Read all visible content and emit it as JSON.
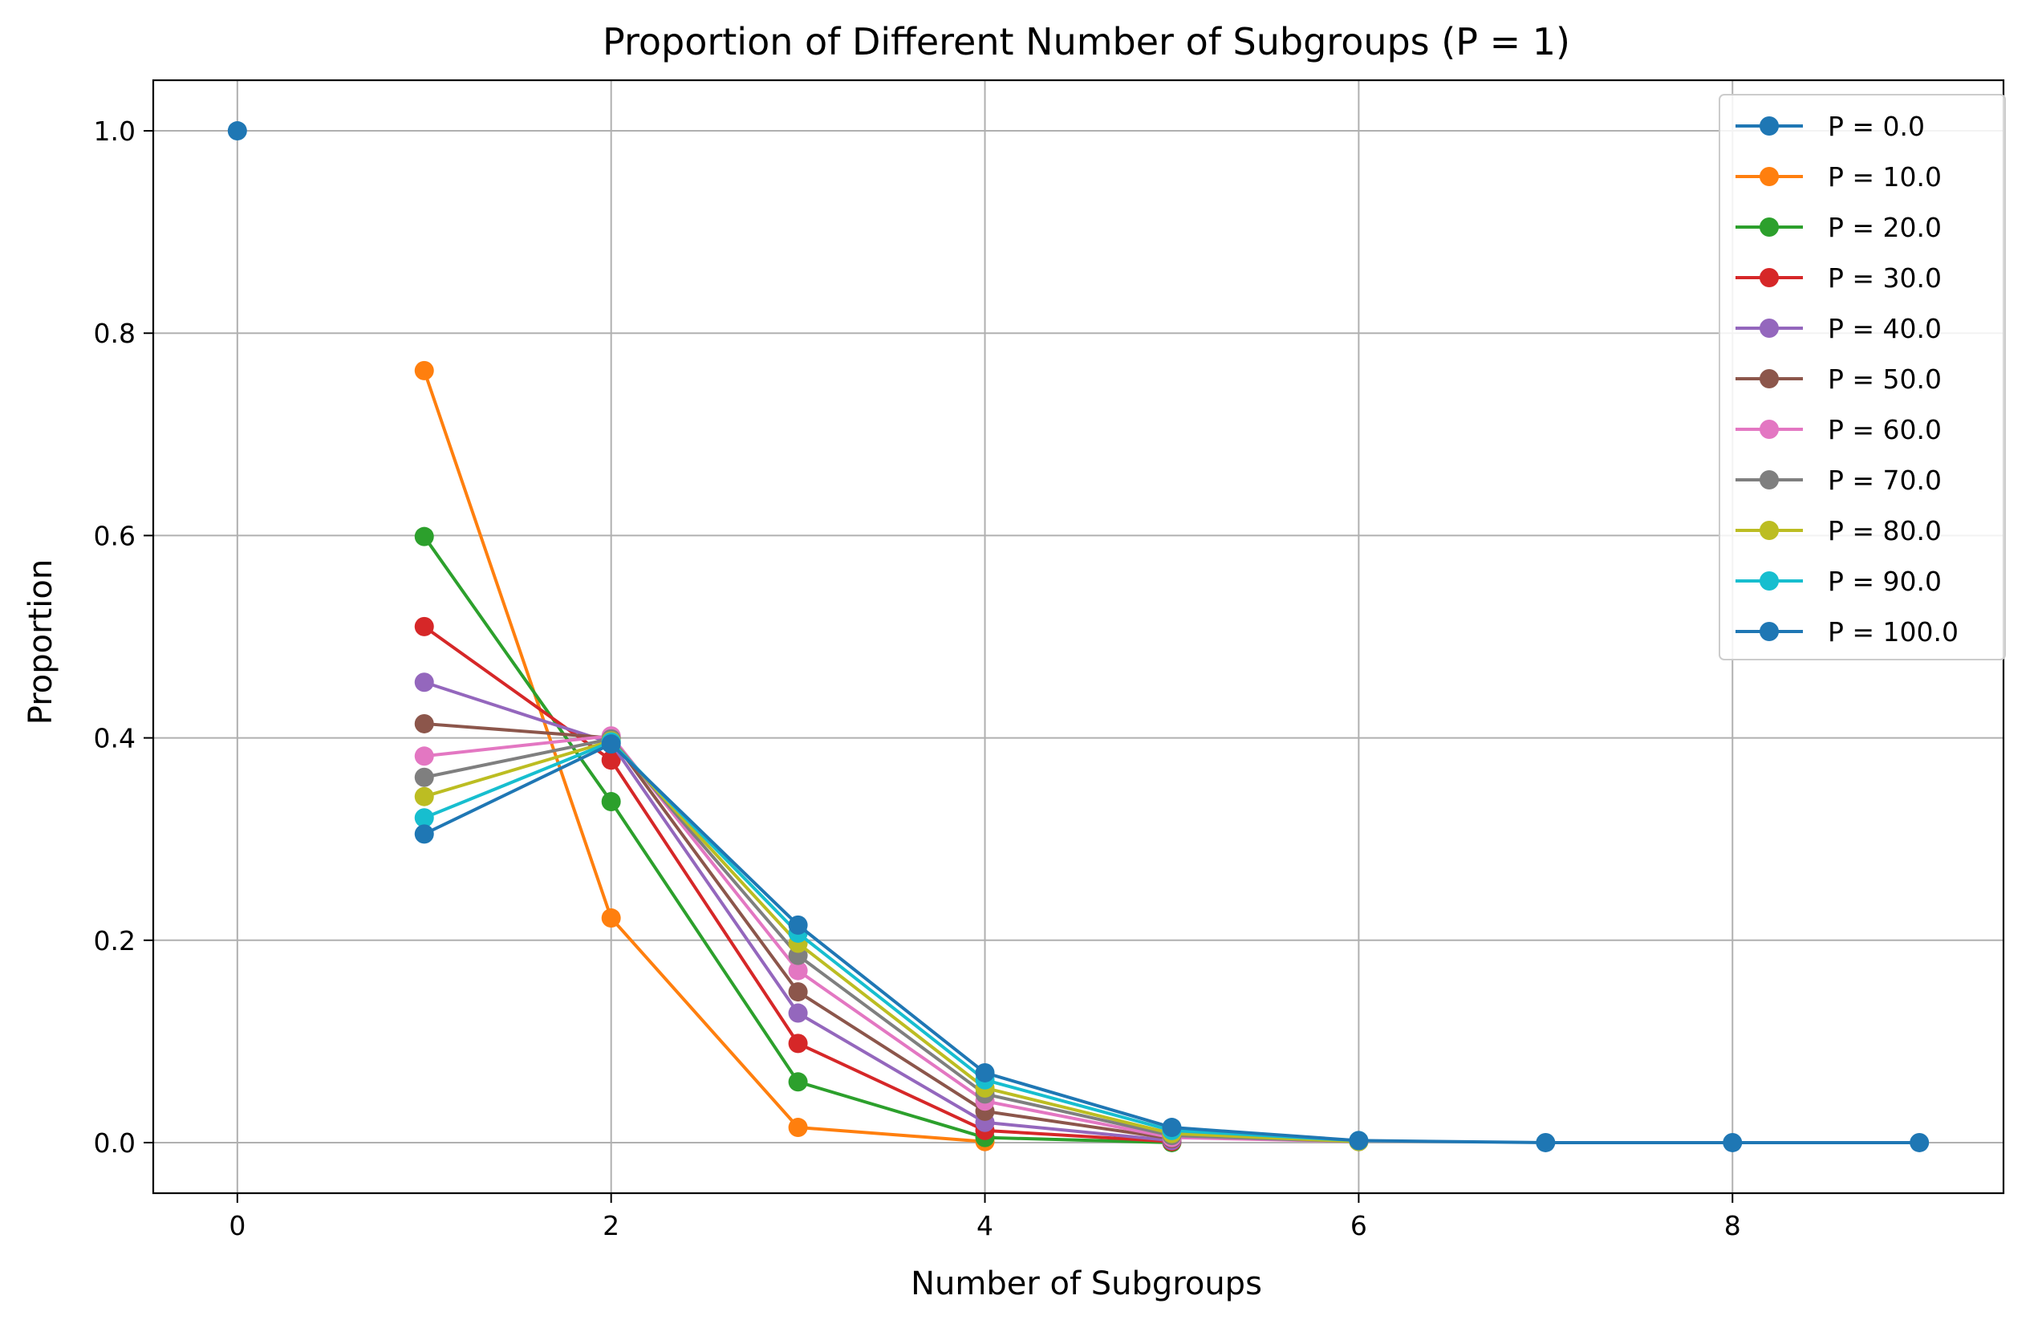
{
  "chart_data": {
    "type": "line",
    "title": "Proportion of Different Number of Subgroups (P = 1)",
    "xlabel": "Number of Subgroups",
    "ylabel": "Proportion",
    "xlim": [
      -0.45,
      9.45
    ],
    "ylim": [
      -0.05,
      1.05
    ],
    "xticks": [
      0,
      2,
      4,
      6,
      8
    ],
    "yticks": [
      0.0,
      0.2,
      0.4,
      0.6,
      0.8,
      1.0
    ],
    "xtick_labels": [
      "0",
      "2",
      "4",
      "6",
      "8"
    ],
    "ytick_labels": [
      "0.0",
      "0.2",
      "0.4",
      "0.6",
      "0.8",
      "1.0"
    ],
    "grid": true,
    "legend_position": "top-right",
    "series": [
      {
        "name": "P = 0.0",
        "color": "#1f77b4",
        "x": [
          0
        ],
        "values": [
          1.0
        ]
      },
      {
        "name": "P = 10.0",
        "color": "#ff7f0e",
        "x": [
          1,
          2,
          3,
          4
        ],
        "values": [
          0.763,
          0.222,
          0.015,
          0.001
        ]
      },
      {
        "name": "P = 20.0",
        "color": "#2ca02c",
        "x": [
          1,
          2,
          3,
          4,
          5
        ],
        "values": [
          0.599,
          0.337,
          0.06,
          0.005,
          0.0
        ]
      },
      {
        "name": "P = 30.0",
        "color": "#d62728",
        "x": [
          1,
          2,
          3,
          4,
          5
        ],
        "values": [
          0.51,
          0.378,
          0.098,
          0.012,
          0.001
        ]
      },
      {
        "name": "P = 40.0",
        "color": "#9467bd",
        "x": [
          1,
          2,
          3,
          4,
          5
        ],
        "values": [
          0.455,
          0.395,
          0.128,
          0.02,
          0.002
        ]
      },
      {
        "name": "P = 50.0",
        "color": "#8c564b",
        "x": [
          1,
          2,
          3,
          4,
          5
        ],
        "values": [
          0.414,
          0.4,
          0.149,
          0.031,
          0.004
        ]
      },
      {
        "name": "P = 60.0",
        "color": "#e377c2",
        "x": [
          1,
          2,
          3,
          4,
          5,
          6
        ],
        "values": [
          0.382,
          0.402,
          0.17,
          0.041,
          0.005,
          0.001
        ]
      },
      {
        "name": "P = 70.0",
        "color": "#7f7f7f",
        "x": [
          1,
          2,
          3,
          4,
          5,
          6
        ],
        "values": [
          0.361,
          0.399,
          0.185,
          0.048,
          0.007,
          0.001
        ]
      },
      {
        "name": "P = 80.0",
        "color": "#bcbd22",
        "x": [
          1,
          2,
          3,
          4,
          5,
          6
        ],
        "values": [
          0.342,
          0.397,
          0.197,
          0.054,
          0.009,
          0.001
        ]
      },
      {
        "name": "P = 90.0",
        "color": "#17becf",
        "x": [
          1,
          2,
          3,
          4,
          5,
          6
        ],
        "values": [
          0.321,
          0.396,
          0.207,
          0.062,
          0.012,
          0.002
        ]
      },
      {
        "name": "P = 100.0",
        "color": "#1f77b4",
        "x": [
          1,
          2,
          3,
          4,
          5,
          6,
          7,
          8,
          9
        ],
        "values": [
          0.305,
          0.394,
          0.215,
          0.069,
          0.015,
          0.002,
          0.0,
          0.0,
          0.0
        ]
      }
    ]
  }
}
